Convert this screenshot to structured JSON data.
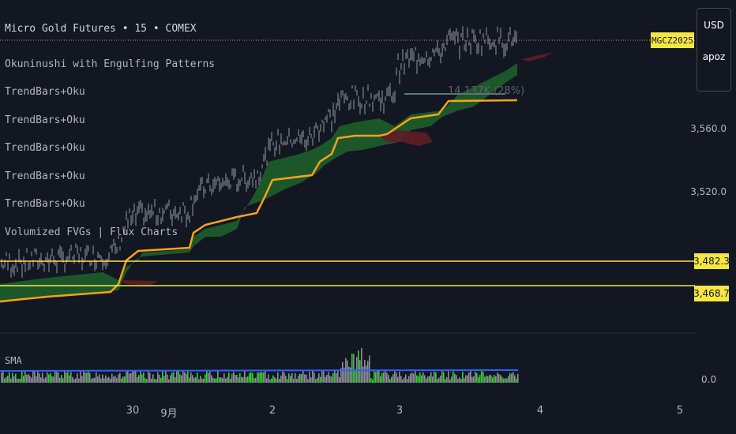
{
  "header": {
    "symbol_line": "Micro Gold Futures • 15 • COMEX"
  },
  "indicators": [
    "Okuninushi with Engulfing Patterns",
    "TrendBars+Oku",
    "TrendBars+Oku",
    "TrendBars+Oku",
    "TrendBars+Oku",
    "TrendBars+Oku",
    "Volumized FVGs | Flux Charts"
  ],
  "price_axis": {
    "labels": [
      "3,560.0",
      "3,520.0"
    ],
    "current_symbol": "MGCZ2025",
    "currency": "USD",
    "unit": "apoz",
    "levels": [
      {
        "label": "3,482.3",
        "color": "#f5e642"
      },
      {
        "label": "3,468.7",
        "color": "#f5e642"
      }
    ]
  },
  "volume_pane": {
    "label": "SMA",
    "zero_label": "0.0"
  },
  "annotation": "14.137K (28%)",
  "time_axis": [
    "30",
    "9月",
    "2",
    "3",
    "4",
    "5"
  ],
  "colors": {
    "background": "#131722",
    "candle": "#9598a1",
    "trend_line": "#f7a21b",
    "cloud_green": "#1e5e2b",
    "cloud_red": "#5e1e24",
    "level_line": "#f5e642",
    "volume_green": "#22dd22",
    "volume_gray": "#8a8d94",
    "sma_line": "#2962ff"
  }
}
